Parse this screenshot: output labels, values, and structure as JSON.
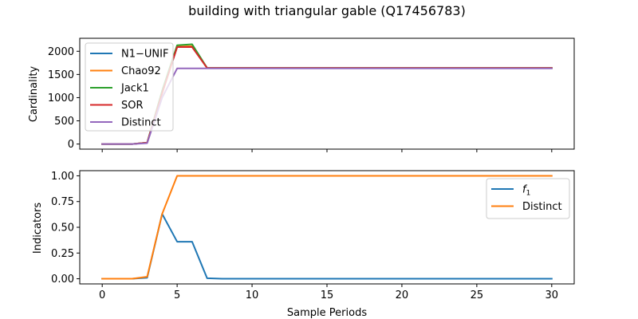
{
  "figure": {
    "title": "building with triangular gable (Q17456783)"
  },
  "chart_data": [
    {
      "type": "line",
      "ylabel": "Cardinality",
      "xlabel": "",
      "xlim": [
        -1.5,
        31.5
      ],
      "ylim": [
        -110,
        2280
      ],
      "x_ticks": [
        0,
        5,
        10,
        15,
        20,
        25,
        30
      ],
      "y_ticks": [
        0,
        500,
        1000,
        1500,
        2000
      ],
      "show_x_tick_labels": false,
      "grid": false,
      "legend": "upper-left",
      "series": [
        {
          "name": "N1−UNIF",
          "color": "#1f77b4",
          "x": [
            0,
            1,
            2,
            3,
            4,
            5,
            6,
            7,
            8,
            30
          ],
          "y": [
            0,
            0,
            0,
            30,
            1100,
            2090,
            2100,
            1640,
            1640,
            1640
          ]
        },
        {
          "name": "Chao92",
          "color": "#ff7f0e",
          "x": [
            0,
            1,
            2,
            3,
            4,
            5,
            6,
            7,
            8,
            30
          ],
          "y": [
            0,
            0,
            0,
            30,
            1100,
            2100,
            2110,
            1640,
            1640,
            1640
          ]
        },
        {
          "name": "Jack1",
          "color": "#2ca02c",
          "x": [
            0,
            1,
            2,
            3,
            4,
            5,
            6,
            7,
            8,
            30
          ],
          "y": [
            0,
            0,
            0,
            30,
            1150,
            2130,
            2150,
            1640,
            1640,
            1640
          ]
        },
        {
          "name": "SOR",
          "color": "#d62728",
          "x": [
            0,
            1,
            2,
            3,
            4,
            5,
            6,
            7,
            8,
            30
          ],
          "y": [
            0,
            0,
            0,
            30,
            1100,
            2090,
            2090,
            1640,
            1640,
            1640
          ]
        },
        {
          "name": "Distinct",
          "color": "#9467bd",
          "x": [
            0,
            1,
            2,
            3,
            4,
            5,
            6,
            7,
            8,
            30
          ],
          "y": [
            0,
            0,
            0,
            20,
            1000,
            1630,
            1630,
            1630,
            1630,
            1630
          ]
        }
      ]
    },
    {
      "type": "line",
      "ylabel": "Indicators",
      "xlabel": "Sample Periods",
      "xlim": [
        -1.5,
        31.5
      ],
      "ylim": [
        -0.05,
        1.05
      ],
      "x_ticks": [
        0,
        5,
        10,
        15,
        20,
        25,
        30
      ],
      "y_ticks": [
        0.0,
        0.25,
        0.5,
        0.75,
        1.0
      ],
      "x_tick_labels": [
        "0",
        "5",
        "10",
        "15",
        "20",
        "25",
        "30"
      ],
      "y_tick_labels": [
        "0.00",
        "0.25",
        "0.50",
        "0.75",
        "1.00"
      ],
      "show_x_tick_labels": true,
      "grid": false,
      "legend": "upper-right",
      "series": [
        {
          "name": "f1",
          "name_main": "f",
          "name_sub": "1",
          "color": "#1f77b4",
          "x": [
            0,
            1,
            2,
            3,
            4,
            5,
            6,
            7,
            8,
            30
          ],
          "y": [
            0,
            0,
            0,
            0.01,
            0.63,
            0.36,
            0.36,
            0.005,
            0.0,
            0.0
          ]
        },
        {
          "name": "Distinct",
          "color": "#ff7f0e",
          "x": [
            0,
            1,
            2,
            3,
            4,
            5,
            6,
            7,
            8,
            30
          ],
          "y": [
            0,
            0,
            0,
            0.02,
            0.63,
            1.0,
            1.0,
            1.0,
            1.0,
            1.0
          ]
        }
      ]
    }
  ]
}
